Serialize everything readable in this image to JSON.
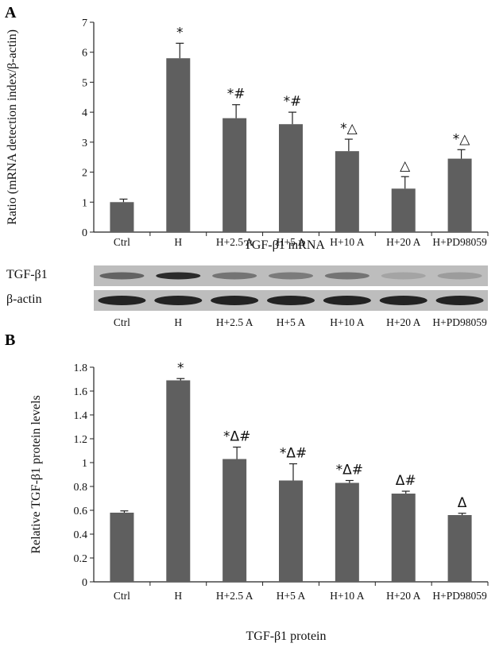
{
  "panels": [
    {
      "letter": "A",
      "caption": "TGF-β1 mRNA"
    },
    {
      "letter": "B",
      "caption": "TGF-β1 protein"
    }
  ],
  "blot": {
    "rows": [
      "TGF-β1",
      "β-actin"
    ],
    "lane_labels": [
      "Ctrl",
      "H",
      "H+2.5 A",
      "H+5 A",
      "H+10 A",
      "H+20 A",
      "H+PD98059"
    ],
    "tgf_band_intensity": [
      0.55,
      0.9,
      0.45,
      0.4,
      0.45,
      0.15,
      0.2
    ],
    "actin_band_intensity": [
      0.95,
      0.95,
      0.95,
      0.95,
      0.95,
      0.95,
      0.95
    ]
  },
  "colors": {
    "bar": "#5f5f5f",
    "axis": "#222222",
    "blot_bg": "#bdbdbd",
    "band": "#1a1a1a"
  },
  "chart_data": [
    {
      "type": "bar",
      "categories": [
        "Ctrl",
        "H",
        "H+2.5 A",
        "H+5 A",
        "H+10 A",
        "H+20 A",
        "H+PD98059"
      ],
      "values": [
        1.0,
        5.8,
        3.8,
        3.6,
        2.7,
        1.45,
        2.45
      ],
      "errors": [
        0.1,
        0.5,
        0.45,
        0.4,
        0.4,
        0.4,
        0.3
      ],
      "annotations": [
        "",
        "*",
        "*#",
        "*#",
        "*△",
        "△",
        "*△"
      ],
      "title": "",
      "xlabel": "TGF-β1 mRNA",
      "ylabel": "Ratio (mRNA detection index/β-actin)",
      "ylim": [
        0,
        7
      ],
      "yticks": [
        "0",
        "1",
        "2",
        "3",
        "4",
        "5",
        "6",
        "7"
      ],
      "grid": false
    },
    {
      "type": "bar",
      "categories": [
        "Ctrl",
        "H",
        "H+2.5 A",
        "H+5 A",
        "H+10 A",
        "H+20 A",
        "H+PD98059"
      ],
      "values": [
        0.58,
        1.69,
        1.03,
        0.85,
        0.83,
        0.74,
        0.56
      ],
      "errors": [
        0.015,
        0.015,
        0.1,
        0.14,
        0.02,
        0.02,
        0.015
      ],
      "annotations": [
        "",
        "*",
        "*Δ#",
        "*Δ#",
        "*Δ#",
        "Δ#",
        "Δ"
      ],
      "title": "",
      "xlabel": "TGF-β1 protein",
      "ylabel": "Relative TGF-β1 protein levels",
      "ylim": [
        0,
        1.8
      ],
      "yticks": [
        "0",
        "0.2",
        "0.4",
        "0.6",
        "0.8",
        "1",
        "1.2",
        "1.4",
        "1.6",
        "1.8"
      ],
      "grid": false
    }
  ]
}
